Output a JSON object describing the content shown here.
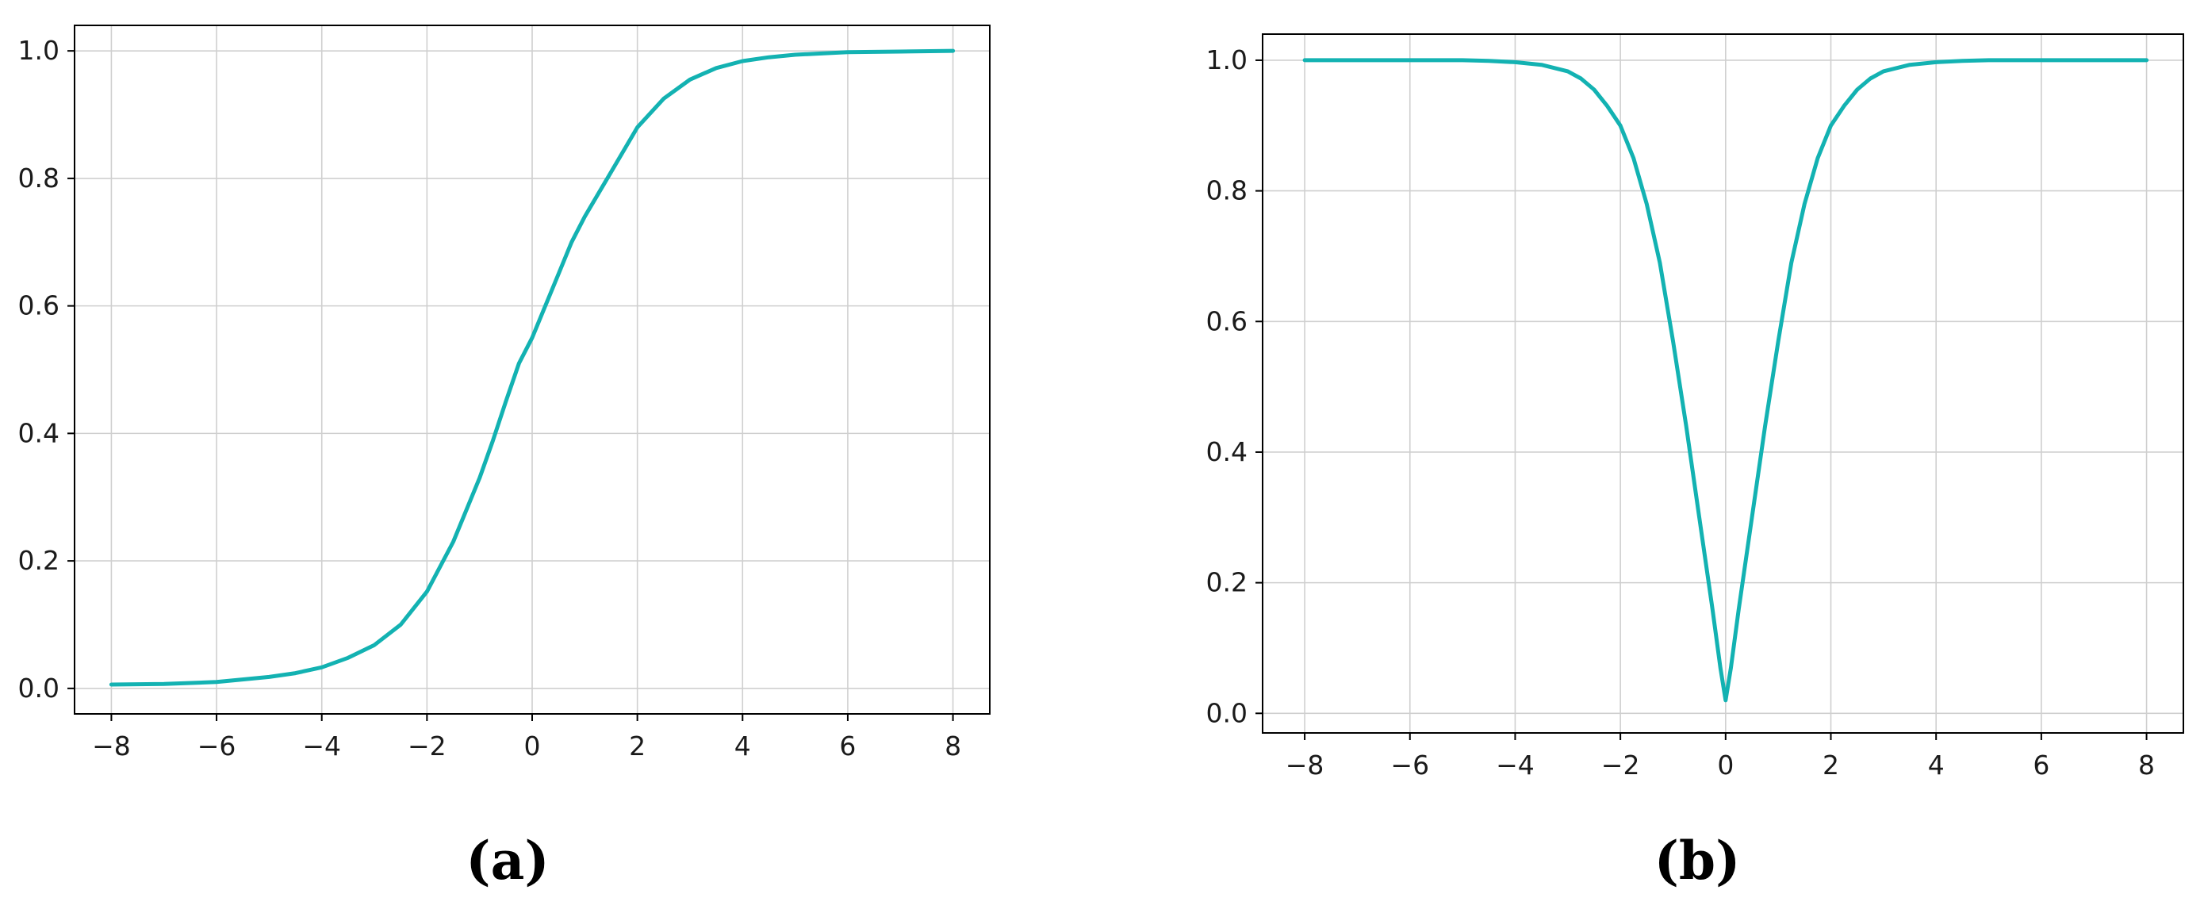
{
  "colors": {
    "curve": "#13b2b2",
    "grid": "#cfcfcf",
    "frame": "#000000"
  },
  "panels": [
    {
      "label": "(a)"
    },
    {
      "label": "(b)"
    }
  ],
  "chart_data": [
    {
      "type": "line",
      "panel": "(a)",
      "xlabel": "",
      "ylabel": "",
      "xlim": [
        -8.7,
        8.7
      ],
      "ylim": [
        -0.04,
        1.04
      ],
      "xticks": [
        -8,
        -6,
        -4,
        -2,
        0,
        2,
        4,
        6,
        8
      ],
      "xtick_labels": [
        "−8",
        "−6",
        "−4",
        "−2",
        "0",
        "2",
        "4",
        "6",
        "8"
      ],
      "yticks": [
        0.0,
        0.2,
        0.4,
        0.6,
        0.8,
        1.0
      ],
      "ytick_labels": [
        "0.0",
        "0.2",
        "0.4",
        "0.6",
        "0.8",
        "1.0"
      ],
      "grid": true,
      "series": [
        {
          "x": [
            -8,
            -7,
            -6,
            -5,
            -4.5,
            -4,
            -3.5,
            -3,
            -2.5,
            -2,
            -1.5,
            -1,
            -0.75,
            -0.5,
            -0.25,
            0,
            0.25,
            0.5,
            0.75,
            1,
            1.5,
            2,
            2.5,
            3,
            3.5,
            4,
            4.5,
            5,
            6,
            7,
            8
          ],
          "y": [
            0.006,
            0.007,
            0.01,
            0.018,
            0.024,
            0.033,
            0.048,
            0.068,
            0.1,
            0.152,
            0.23,
            0.33,
            0.388,
            0.45,
            0.51,
            0.55,
            0.6,
            0.65,
            0.7,
            0.74,
            0.81,
            0.88,
            0.925,
            0.955,
            0.973,
            0.984,
            0.99,
            0.994,
            0.998,
            0.999,
            1.0
          ]
        }
      ]
    },
    {
      "type": "line",
      "panel": "(b)",
      "xlabel": "",
      "ylabel": "",
      "xlim": [
        -8.8,
        8.7
      ],
      "ylim": [
        -0.03,
        1.04
      ],
      "xticks": [
        -8,
        -6,
        -4,
        -2,
        0,
        2,
        4,
        6,
        8
      ],
      "xtick_labels": [
        "−8",
        "−6",
        "−4",
        "−2",
        "0",
        "2",
        "4",
        "6",
        "8"
      ],
      "yticks": [
        0.0,
        0.2,
        0.4,
        0.6,
        0.8,
        1.0
      ],
      "ytick_labels": [
        "0.0",
        "0.2",
        "0.4",
        "0.6",
        "0.8",
        "1.0"
      ],
      "grid": true,
      "series": [
        {
          "x": [
            -8,
            -6,
            -5,
            -4.5,
            -4,
            -3.5,
            -3,
            -2.75,
            -2.5,
            -2.25,
            -2,
            -1.75,
            -1.5,
            -1.25,
            -1,
            -0.75,
            -0.5,
            -0.25,
            -0.1,
            0,
            0.1,
            0.25,
            0.5,
            0.75,
            1,
            1.25,
            1.5,
            1.75,
            2,
            2.25,
            2.5,
            2.75,
            3,
            3.5,
            4,
            4.5,
            5,
            6,
            8
          ],
          "y": [
            1.0,
            1.0,
            1.0,
            0.999,
            0.997,
            0.993,
            0.983,
            0.972,
            0.955,
            0.93,
            0.9,
            0.85,
            0.78,
            0.69,
            0.57,
            0.44,
            0.3,
            0.16,
            0.07,
            0.02,
            0.07,
            0.16,
            0.3,
            0.44,
            0.57,
            0.69,
            0.78,
            0.85,
            0.9,
            0.93,
            0.955,
            0.972,
            0.983,
            0.993,
            0.997,
            0.999,
            1.0,
            1.0,
            1.0
          ]
        }
      ]
    }
  ]
}
